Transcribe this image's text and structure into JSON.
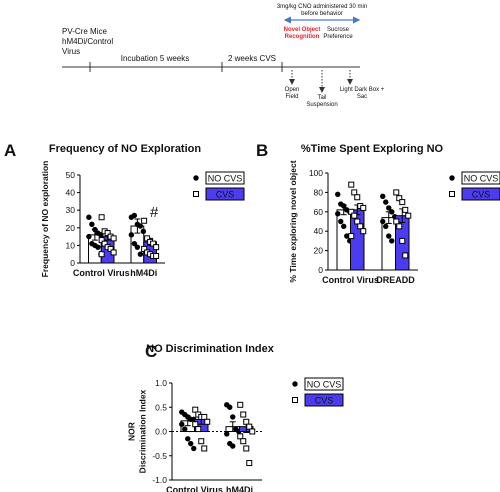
{
  "timeline": {
    "subject": [
      "PV-Cre Mice",
      "hM4Di/Control",
      "Virus"
    ],
    "phases": [
      "Incubation  5 weeks",
      "2 weeks CVS"
    ],
    "treatment": [
      "3mg/kg CNO administered 30 min",
      "before behavior"
    ],
    "tests_top": [
      [
        "Novel Object",
        "Recognition"
      ],
      [
        "Sucrose",
        "Preference"
      ]
    ],
    "tests_bottom": [
      [
        "Open",
        "Field"
      ],
      [
        "Tail",
        "Suspension"
      ],
      [
        "Light Dark Box +",
        "Sac"
      ]
    ]
  },
  "chart_data": [
    {
      "type": "bar",
      "panel": "A",
      "title": "Frequency of NO Exploration",
      "ylabel": "Frequency of NO exploration",
      "categories": [
        "Control Virus",
        "hM4Di"
      ],
      "ylim": [
        0,
        50
      ],
      "yticks": [
        0,
        10,
        20,
        30,
        40,
        50
      ],
      "series": [
        {
          "name": "NO CVS",
          "color": "#ffffff",
          "marker": "circle",
          "values": [
            16,
            21
          ],
          "errors": [
            3,
            4
          ],
          "points": [
            [
              26,
              22,
              19,
              17,
              16,
              15,
              11,
              10,
              9,
              5
            ],
            [
              26,
              27,
              22,
              21,
              18,
              16,
              11,
              9,
              5
            ]
          ]
        },
        {
          "name": "CVS",
          "color": "#4b3cf0",
          "marker": "square",
          "values": [
            15,
            12
          ],
          "errors": [
            2,
            2
          ],
          "points": [
            [
              26,
              18,
              17,
              15,
              14,
              13,
              11,
              9,
              8,
              6,
              5
            ],
            [
              24,
              14,
              12,
              11,
              9,
              8,
              6,
              5,
              4,
              4
            ]
          ],
          "annotations": [
            null,
            "#"
          ]
        }
      ]
    },
    {
      "type": "bar",
      "panel": "B",
      "title": "%Time Spent Exploring NO",
      "ylabel": "% Time exploring novel object",
      "categories": [
        "Control Virus",
        "DREADD"
      ],
      "ylim": [
        0,
        100
      ],
      "yticks": [
        0,
        20,
        40,
        60,
        80,
        100
      ],
      "series": [
        {
          "name": "NO CVS",
          "color": "#ffffff",
          "marker": "circle",
          "values": [
            62,
            54
          ],
          "errors": [
            5,
            6
          ],
          "points": [
            [
              78,
              68,
              66,
              62,
              60,
              58,
              50,
              45,
              35,
              30
            ],
            [
              76,
              70,
              64,
              60,
              55,
              50,
              45,
              35,
              30
            ]
          ]
        },
        {
          "name": "CVS",
          "color": "#4b3cf0",
          "marker": "square",
          "values": [
            62,
            56
          ],
          "errors": [
            5,
            7
          ],
          "points": [
            [
              88,
              80,
              75,
              66,
              64,
              60,
              56,
              50,
              45,
              40,
              35
            ],
            [
              80,
              74,
              70,
              62,
              56,
              50,
              45,
              30,
              15
            ]
          ]
        }
      ]
    },
    {
      "type": "bar",
      "panel": "C",
      "title": "NO Discrimination Index",
      "ylabel": [
        "NOR",
        "Discrimination Index"
      ],
      "categories": [
        "Control Virus",
        "hM4Di"
      ],
      "ylim": [
        -1.0,
        1.0
      ],
      "yticks": [
        {
          "value": -1.0,
          "label": "-1.0"
        },
        -0.5,
        {
          "value": 0.0,
          "label": "0.0"
        },
        0.5,
        {
          "value": 1.0,
          "label": "1.0"
        }
      ],
      "zero_line": true,
      "series": [
        {
          "name": "NO CVS",
          "color": "#ffffff",
          "marker": "circle",
          "values": [
            0.22,
            0.1
          ],
          "errors": [
            0.1,
            0.1
          ],
          "points": [
            [
              0.4,
              0.35,
              0.3,
              0.25,
              0.25,
              0.15,
              0.05,
              -0.15,
              -0.25,
              -0.35
            ],
            [
              0.55,
              0.5,
              0.3,
              0.05,
              0,
              -0.05,
              -0.25,
              -0.3
            ]
          ]
        },
        {
          "name": "CVS",
          "color": "#4b3cf0",
          "marker": "square",
          "values": [
            0.25,
            0.1
          ],
          "errors": [
            0.1,
            0.12
          ],
          "points": [
            [
              0.45,
              0.35,
              0.3,
              0.3,
              0.2,
              0.15,
              0.05,
              -0.2,
              -0.35
            ],
            [
              0.55,
              0.35,
              0.2,
              0.1,
              0,
              -0.1,
              -0.2,
              -0.35,
              -0.65
            ]
          ]
        }
      ]
    }
  ]
}
